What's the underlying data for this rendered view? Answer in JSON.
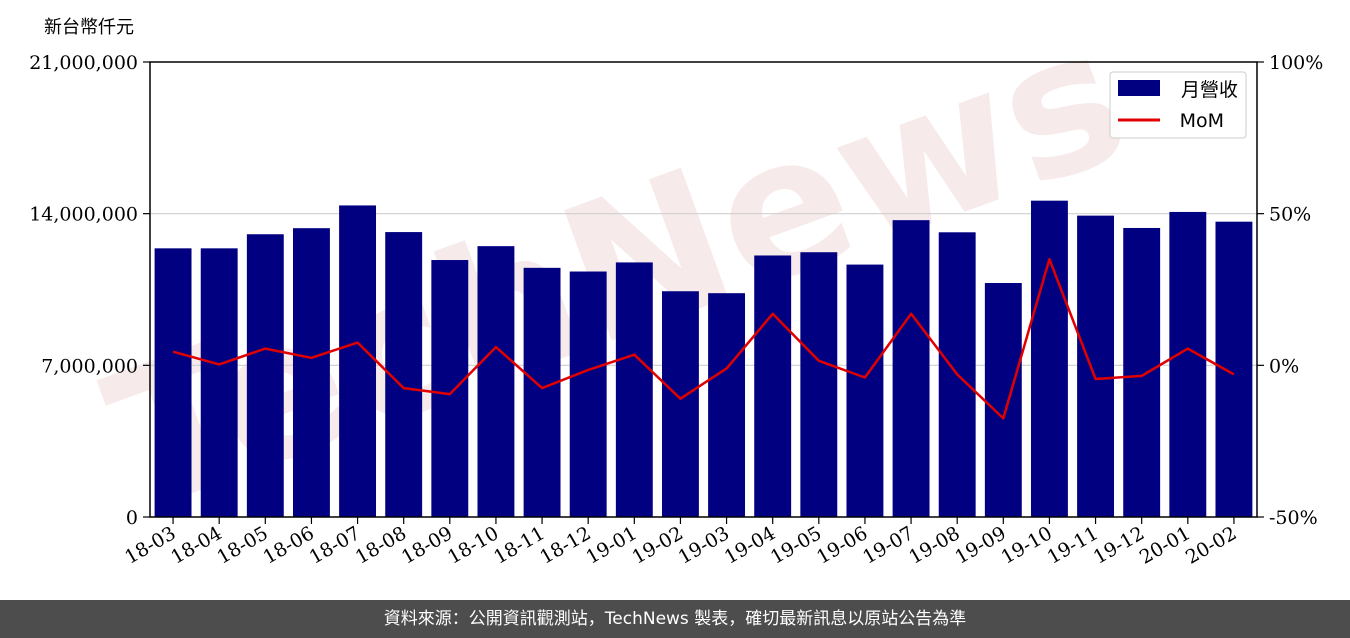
{
  "chart_data": {
    "type": "bar",
    "left_axis_unit": "新台幣仟元",
    "watermark": "TechNews",
    "categories": [
      "18-03",
      "18-04",
      "18-05",
      "18-06",
      "18-07",
      "18-08",
      "18-09",
      "18-10",
      "18-11",
      "18-12",
      "19-01",
      "19-02",
      "19-03",
      "19-04",
      "19-05",
      "19-06",
      "19-07",
      "19-08",
      "19-09",
      "19-10",
      "19-11",
      "19-12",
      "20-01",
      "20-02"
    ],
    "series": [
      {
        "name": "月營收",
        "type": "bar",
        "axis": "left",
        "color": "#000080",
        "values": [
          12400000,
          12400000,
          13050000,
          13330000,
          14380000,
          13150000,
          11860000,
          12500000,
          11500000,
          11330000,
          11750000,
          10420000,
          10330000,
          12070000,
          12220000,
          11650000,
          13700000,
          13140000,
          10800000,
          14600000,
          13910000,
          13340000,
          14080000,
          13630000
        ]
      },
      {
        "name": "MoM",
        "type": "line",
        "axis": "right",
        "color": "#e00000",
        "values": [
          4.5,
          0.3,
          5.5,
          2.5,
          7.5,
          -7.5,
          -9.5,
          6.0,
          -7.5,
          -1.5,
          3.5,
          -11.0,
          -1.0,
          17.0,
          1.5,
          -4.0,
          17.0,
          -3.0,
          -17.5,
          35.0,
          -4.5,
          -3.5,
          5.5,
          -3.0
        ]
      }
    ],
    "left_axis": {
      "ylim": [
        0,
        21000000
      ],
      "ticks": [
        0,
        7000000,
        14000000,
        21000000
      ],
      "tick_labels": [
        "0",
        "7,000,000",
        "14,000,000",
        "21,000,000"
      ]
    },
    "right_axis": {
      "ylim": [
        -50,
        100
      ],
      "ticks": [
        -50,
        0,
        50,
        100
      ],
      "tick_labels": [
        "-50%",
        "0%",
        "50%",
        "100%"
      ]
    },
    "grid": true,
    "legend_position": "top-right"
  },
  "footer": {
    "source_text": "資料來源：公開資訊觀測站，TechNews 製表，確切最新訊息以原站公告為準"
  }
}
